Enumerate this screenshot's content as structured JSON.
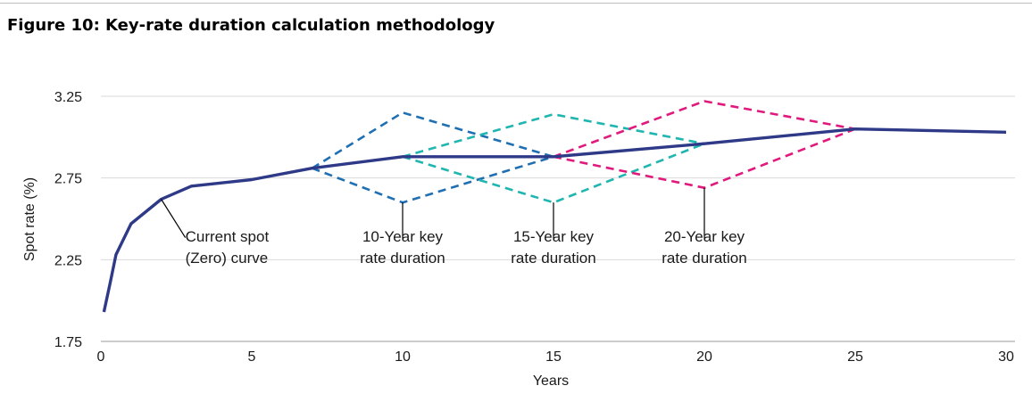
{
  "title": "Figure 10: Key-rate duration calculation methodology",
  "chart_data": {
    "type": "line",
    "xlabel": "Years",
    "ylabel": "Spot rate (%)",
    "xlim": [
      0,
      30
    ],
    "ylim": [
      1.75,
      3.25
    ],
    "xticks": [
      0,
      5,
      10,
      15,
      20,
      25,
      30
    ],
    "yticks": [
      1.75,
      2.25,
      2.75,
      3.25
    ],
    "ytick_labels": [
      "1.75",
      "2.25",
      "2.75",
      "3.25"
    ],
    "grid": "horizontal",
    "colors": {
      "base": "#2e3a87",
      "krd10": "#1f6fb2",
      "krd15": "#1fb5b0",
      "krd20": "#e0197d",
      "grid": "#d9d9d9",
      "leader": "#000000"
    },
    "series": [
      {
        "key": "base",
        "style": "solid",
        "x": [
          0.1,
          0.3,
          0.5,
          1,
          2,
          3,
          5,
          7,
          10,
          15,
          20,
          25,
          30
        ],
        "y": [
          1.93,
          2.1,
          2.28,
          2.47,
          2.62,
          2.7,
          2.74,
          2.81,
          2.88,
          2.88,
          2.96,
          3.05,
          3.03
        ]
      },
      {
        "key": "krd10",
        "style": "dashed",
        "x": [
          7,
          10,
          15
        ],
        "y": [
          2.81,
          3.15,
          2.88
        ]
      },
      {
        "key": "krd10",
        "style": "dashed",
        "x": [
          7,
          10,
          15
        ],
        "y": [
          2.81,
          2.6,
          2.88
        ]
      },
      {
        "key": "krd15",
        "style": "dashed",
        "x": [
          10,
          15,
          20
        ],
        "y": [
          2.88,
          3.14,
          2.96
        ]
      },
      {
        "key": "krd15",
        "style": "dashed",
        "x": [
          10,
          15,
          20
        ],
        "y": [
          2.88,
          2.6,
          2.96
        ]
      },
      {
        "key": "krd20",
        "style": "dashed",
        "x": [
          15,
          20,
          25
        ],
        "y": [
          2.88,
          3.22,
          3.05
        ]
      },
      {
        "key": "krd20",
        "style": "dashed",
        "x": [
          15,
          20,
          25
        ],
        "y": [
          2.88,
          2.69,
          3.05
        ]
      }
    ],
    "annotations": [
      {
        "id": "base",
        "lines": [
          "Current spot",
          "(Zero) curve"
        ],
        "point": [
          2,
          2.62
        ],
        "tail": [
          2.8,
          2.385
        ],
        "text_at": [
          2.8,
          2.36
        ],
        "text_anchor": "start"
      },
      {
        "id": "krd10",
        "lines": [
          "10-Year key",
          "rate duration"
        ],
        "point": [
          10,
          2.6
        ],
        "tail": [
          10,
          2.38
        ],
        "text_at": [
          10,
          2.36
        ],
        "text_anchor": "middle"
      },
      {
        "id": "krd15",
        "lines": [
          "15-Year key",
          "rate duration"
        ],
        "point": [
          15,
          2.6
        ],
        "tail": [
          15,
          2.38
        ],
        "text_at": [
          15,
          2.36
        ],
        "text_anchor": "middle"
      },
      {
        "id": "krd20",
        "lines": [
          "20-Year key",
          "rate duration"
        ],
        "point": [
          20,
          2.69
        ],
        "tail": [
          20,
          2.38
        ],
        "text_at": [
          20,
          2.36
        ],
        "text_anchor": "middle"
      }
    ]
  }
}
